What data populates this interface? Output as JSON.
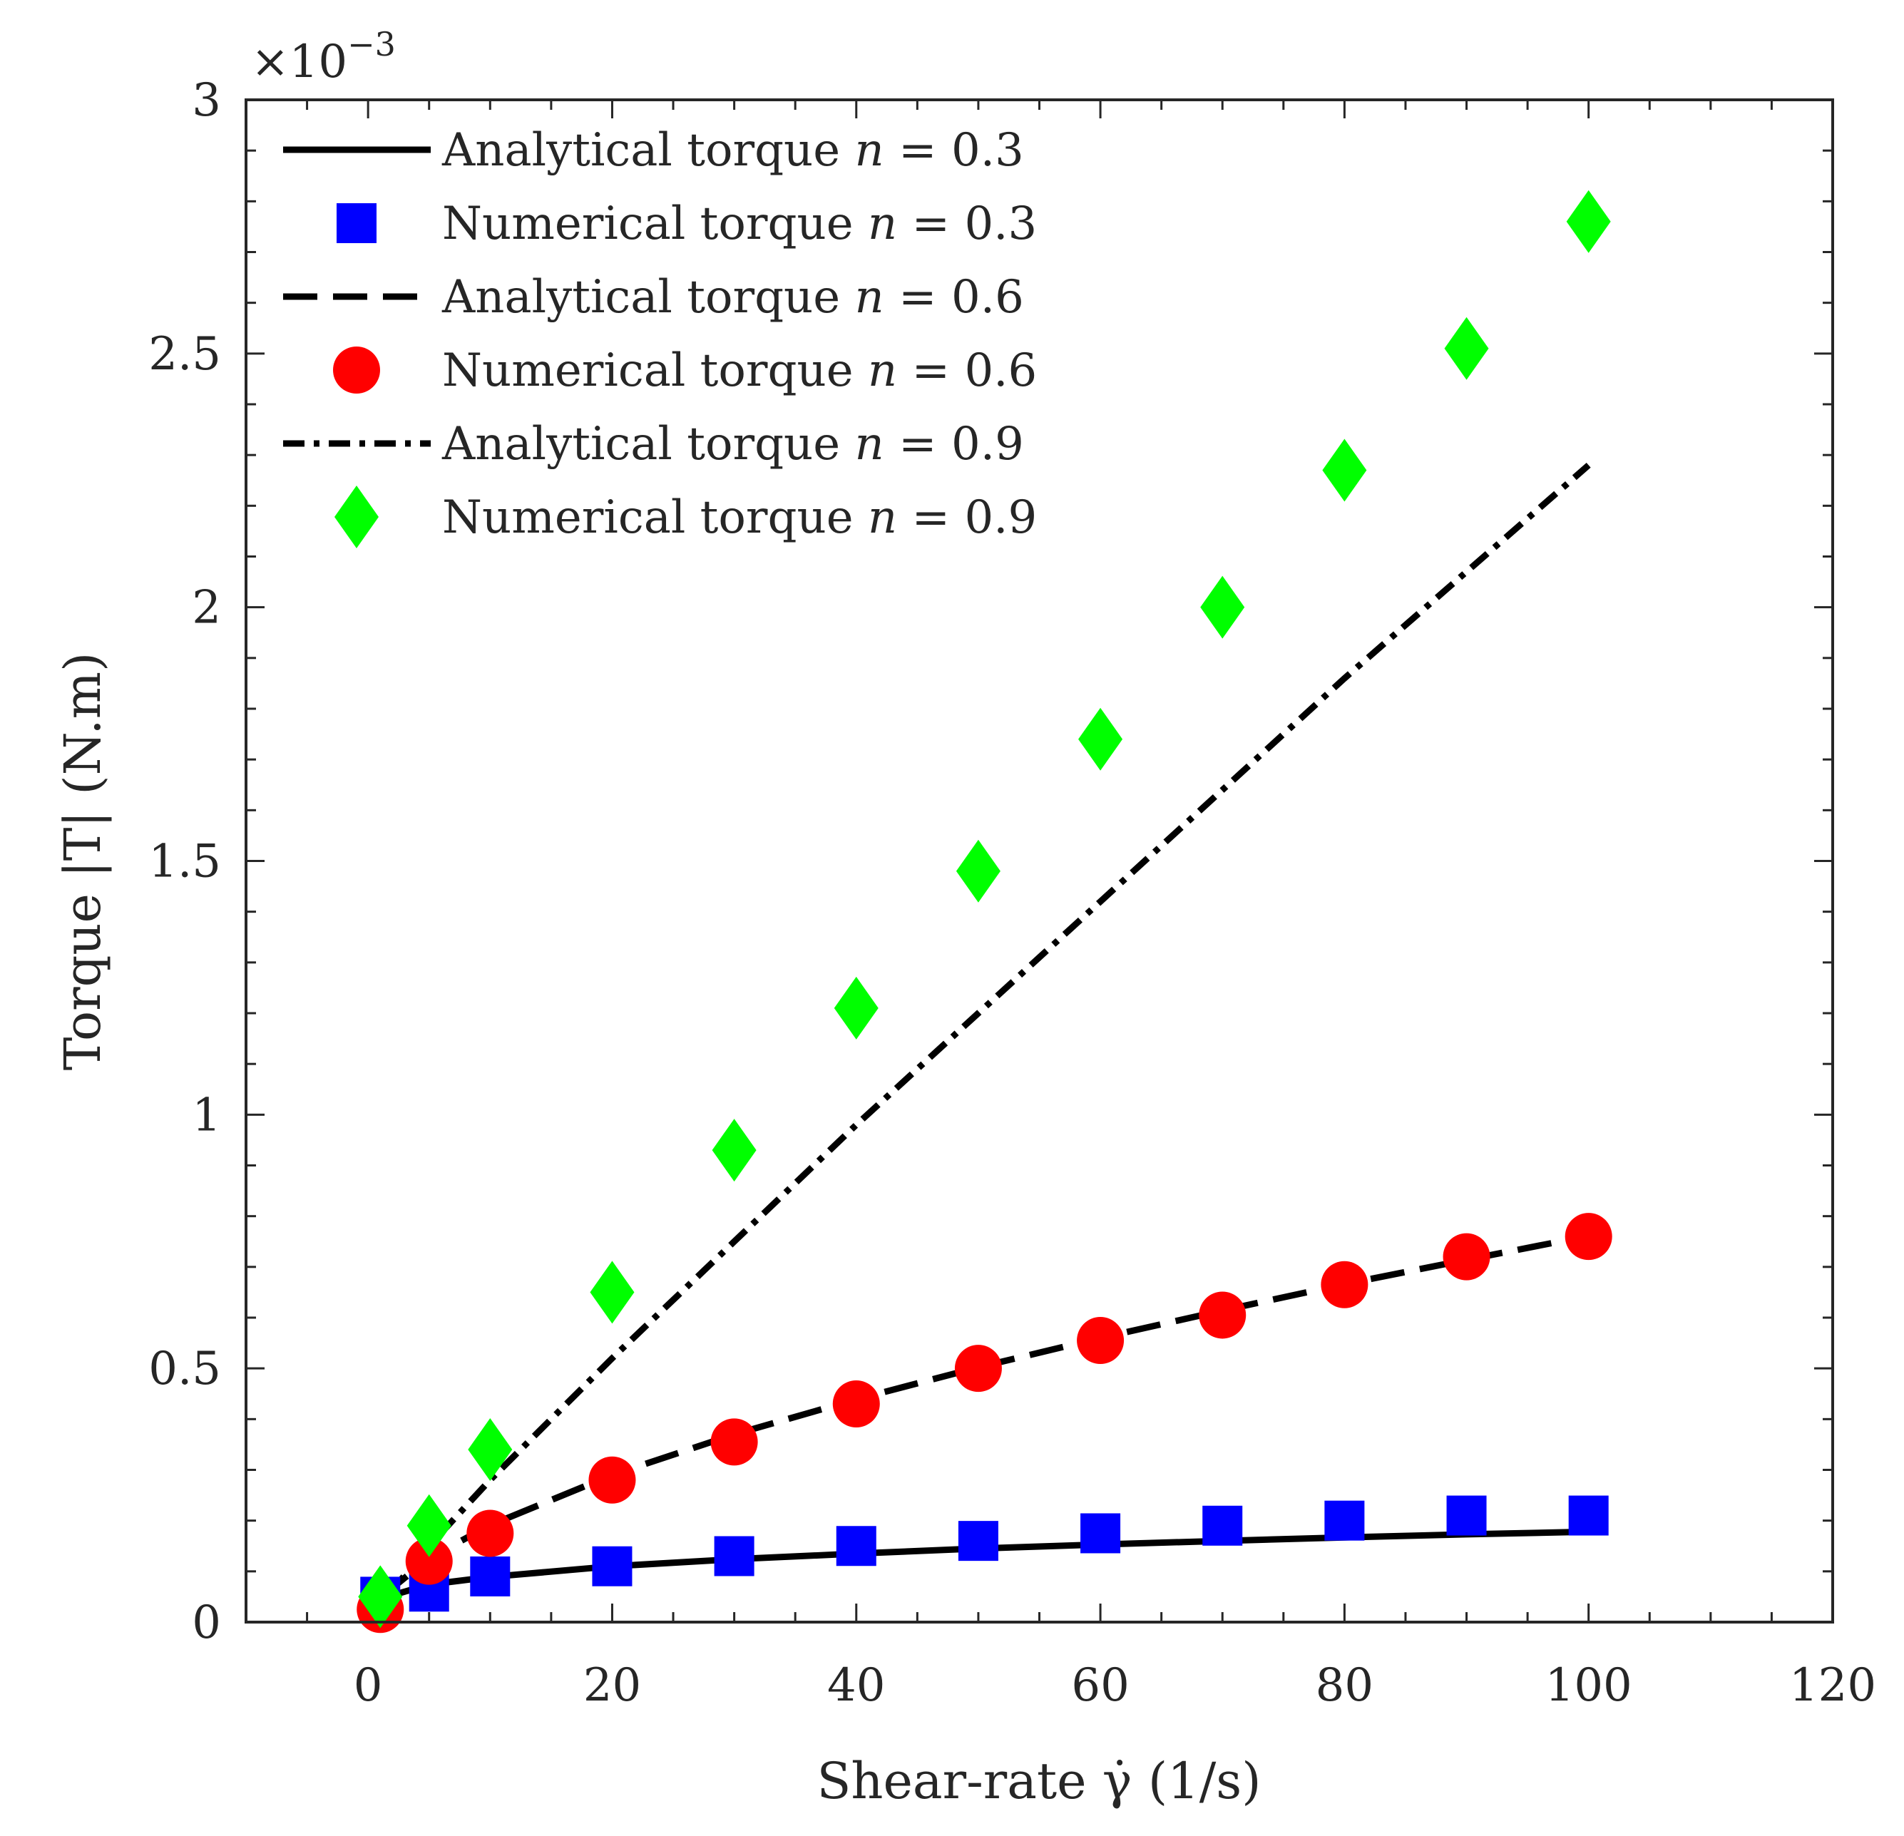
{
  "chart_data": {
    "type": "line",
    "title": "",
    "xlabel": "Shear-rate γ̇ (1/s)",
    "ylabel": "Torque |T| (N.m)",
    "y_exponent_label": "×10",
    "y_exponent_power": "−3",
    "xlim": [
      -10,
      120
    ],
    "ylim": [
      0,
      3
    ],
    "x_ticks": [
      0,
      20,
      40,
      60,
      80,
      100,
      120
    ],
    "y_ticks": [
      0,
      0.5,
      1,
      1.5,
      2,
      2.5,
      3
    ],
    "x_tick_labels": [
      "0",
      "20",
      "40",
      "60",
      "80",
      "100",
      "120"
    ],
    "y_tick_labels": [
      "0",
      "0.5",
      "1",
      "1.5",
      "2",
      "2.5",
      "3"
    ],
    "y_units_scale": "values are ×10^-3 N.m",
    "x": [
      1,
      5,
      10,
      20,
      30,
      40,
      50,
      60,
      70,
      80,
      90,
      100
    ],
    "series": [
      {
        "name": "Analytical torque n = 0.3",
        "prefix": "Analytical torque ",
        "var": "n",
        "rhs": " = 0.3",
        "kind": "line",
        "dash": "solid",
        "color": "#000000",
        "values": [
          0.046,
          0.074,
          0.089,
          0.11,
          0.124,
          0.135,
          0.145,
          0.153,
          0.16,
          0.167,
          0.173,
          0.178
        ]
      },
      {
        "name": "Numerical torque n = 0.3",
        "prefix": "Numerical torque ",
        "var": "n",
        "rhs": " = 0.3",
        "kind": "marker",
        "marker": "square",
        "color": "#0000ff",
        "values": [
          0.05,
          0.06,
          0.09,
          0.11,
          0.13,
          0.15,
          0.16,
          0.175,
          0.19,
          0.2,
          0.21,
          0.21
        ]
      },
      {
        "name": "Analytical torque n = 0.6",
        "prefix": "Analytical torque ",
        "var": "n",
        "rhs": " = 0.6",
        "kind": "line",
        "dash": "dashed",
        "color": "#000000",
        "values": [
          0.048,
          0.126,
          0.191,
          0.29,
          0.37,
          0.439,
          0.502,
          0.56,
          0.614,
          0.666,
          0.714,
          0.761
        ]
      },
      {
        "name": "Numerical torque n = 0.6",
        "prefix": "Numerical torque ",
        "var": "n",
        "rhs": " = 0.6",
        "kind": "marker",
        "marker": "circle",
        "color": "#ff0000",
        "values": [
          0.025,
          0.12,
          0.175,
          0.28,
          0.355,
          0.43,
          0.5,
          0.555,
          0.605,
          0.665,
          0.72,
          0.76
        ]
      },
      {
        "name": "Analytical torque n = 0.9",
        "prefix": "Analytical torque ",
        "var": "n",
        "rhs": " = 0.9",
        "kind": "line",
        "dash": "dashdot",
        "color": "#000000",
        "values": [
          0.035,
          0.15,
          0.28,
          0.52,
          0.75,
          0.98,
          1.2,
          1.42,
          1.64,
          1.86,
          2.07,
          2.28
        ]
      },
      {
        "name": "Numerical torque n = 0.9",
        "prefix": "Numerical torque ",
        "var": "n",
        "rhs": " = 0.9",
        "kind": "marker",
        "marker": "diamond",
        "color": "#00ff00",
        "values": [
          0.05,
          0.19,
          0.34,
          0.65,
          0.93,
          1.21,
          1.48,
          1.74,
          2.0,
          2.27,
          2.51,
          2.76
        ]
      }
    ],
    "legend": {
      "position": "top-left"
    },
    "grid": false
  }
}
